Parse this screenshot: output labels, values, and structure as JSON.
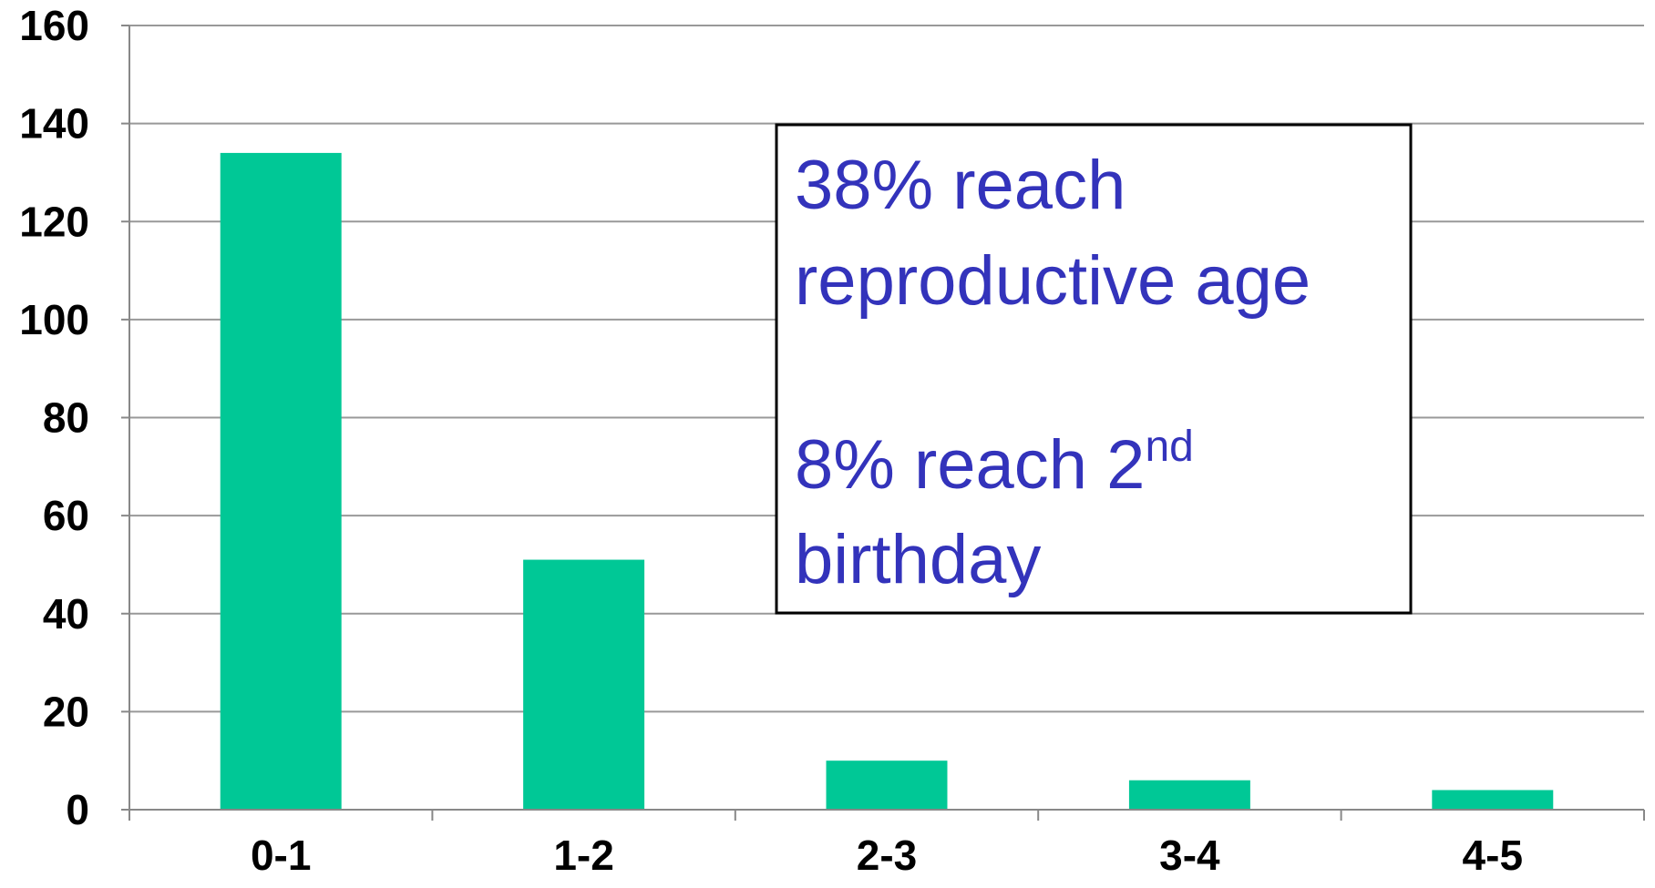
{
  "chart_data": {
    "type": "bar",
    "categories": [
      "0-1",
      "1-2",
      "2-3",
      "3-4",
      "4-5"
    ],
    "values": [
      134,
      51,
      10,
      6,
      4
    ],
    "color": "#00c896",
    "ylim": [
      0,
      160
    ],
    "yticks": [
      0,
      20,
      40,
      60,
      80,
      100,
      120,
      140,
      160
    ],
    "grid": true,
    "annotations": [
      {
        "lines": [
          "38% reach",
          "reproductive age"
        ]
      },
      {
        "lines": [
          "8% reach 2",
          "birthday"
        ],
        "superscript": "nd"
      }
    ]
  }
}
